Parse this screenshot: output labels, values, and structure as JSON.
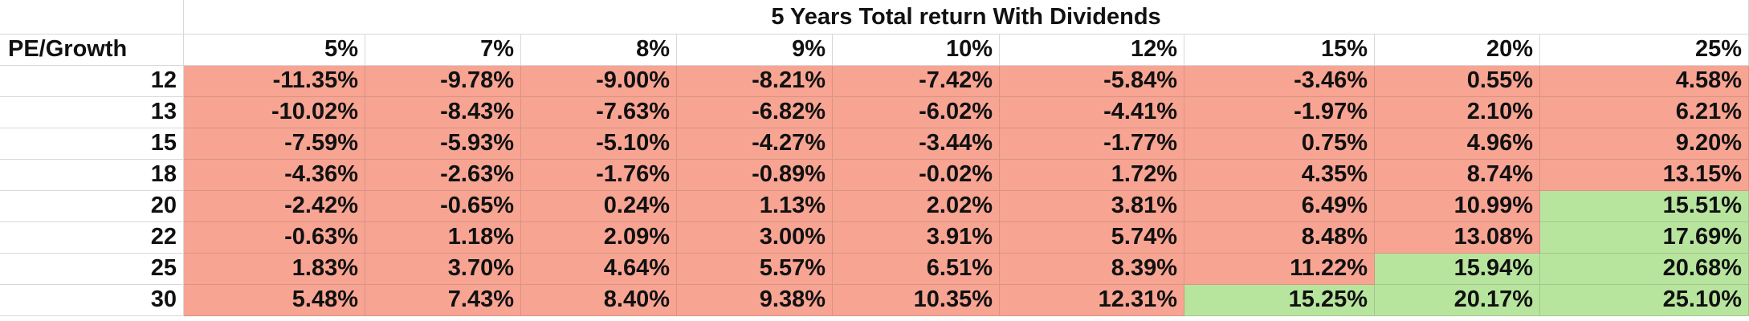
{
  "title": "5 Years Total return With Dividends",
  "corner_label": "PE/Growth",
  "column_headers": [
    "5%",
    "7%",
    "8%",
    "9%",
    "10%",
    "12%",
    "15%",
    "20%",
    "25%"
  ],
  "colors": {
    "positive_fill": "#b7e59e",
    "negative_fill": "#f8a493"
  },
  "rows": [
    {
      "label": "12",
      "values": [
        "-11.35%",
        "-9.78%",
        "-9.00%",
        "-8.21%",
        "-7.42%",
        "-5.84%",
        "-3.46%",
        "0.55%",
        "4.58%"
      ],
      "fills": [
        "neg",
        "neg",
        "neg",
        "neg",
        "neg",
        "neg",
        "neg",
        "neg",
        "neg"
      ]
    },
    {
      "label": "13",
      "values": [
        "-10.02%",
        "-8.43%",
        "-7.63%",
        "-6.82%",
        "-6.02%",
        "-4.41%",
        "-1.97%",
        "2.10%",
        "6.21%"
      ],
      "fills": [
        "neg",
        "neg",
        "neg",
        "neg",
        "neg",
        "neg",
        "neg",
        "neg",
        "neg"
      ]
    },
    {
      "label": "15",
      "values": [
        "-7.59%",
        "-5.93%",
        "-5.10%",
        "-4.27%",
        "-3.44%",
        "-1.77%",
        "0.75%",
        "4.96%",
        "9.20%"
      ],
      "fills": [
        "neg",
        "neg",
        "neg",
        "neg",
        "neg",
        "neg",
        "neg",
        "neg",
        "neg"
      ]
    },
    {
      "label": "18",
      "values": [
        "-4.36%",
        "-2.63%",
        "-1.76%",
        "-0.89%",
        "-0.02%",
        "1.72%",
        "4.35%",
        "8.74%",
        "13.15%"
      ],
      "fills": [
        "neg",
        "neg",
        "neg",
        "neg",
        "neg",
        "neg",
        "neg",
        "neg",
        "neg"
      ]
    },
    {
      "label": "20",
      "values": [
        "-2.42%",
        "-0.65%",
        "0.24%",
        "1.13%",
        "2.02%",
        "3.81%",
        "6.49%",
        "10.99%",
        "15.51%"
      ],
      "fills": [
        "neg",
        "neg",
        "neg",
        "neg",
        "neg",
        "neg",
        "neg",
        "neg",
        "pos"
      ]
    },
    {
      "label": "22",
      "values": [
        "-0.63%",
        "1.18%",
        "2.09%",
        "3.00%",
        "3.91%",
        "5.74%",
        "8.48%",
        "13.08%",
        "17.69%"
      ],
      "fills": [
        "neg",
        "neg",
        "neg",
        "neg",
        "neg",
        "neg",
        "neg",
        "neg",
        "pos"
      ]
    },
    {
      "label": "25",
      "values": [
        "1.83%",
        "3.70%",
        "4.64%",
        "5.57%",
        "6.51%",
        "8.39%",
        "11.22%",
        "15.94%",
        "20.68%"
      ],
      "fills": [
        "neg",
        "neg",
        "neg",
        "neg",
        "neg",
        "neg",
        "neg",
        "pos",
        "pos"
      ]
    },
    {
      "label": "30",
      "values": [
        "5.48%",
        "7.43%",
        "8.40%",
        "9.38%",
        "10.35%",
        "12.31%",
        "15.25%",
        "20.17%",
        "25.10%"
      ],
      "fills": [
        "neg",
        "neg",
        "neg",
        "neg",
        "neg",
        "neg",
        "pos",
        "pos",
        "pos"
      ]
    }
  ]
}
